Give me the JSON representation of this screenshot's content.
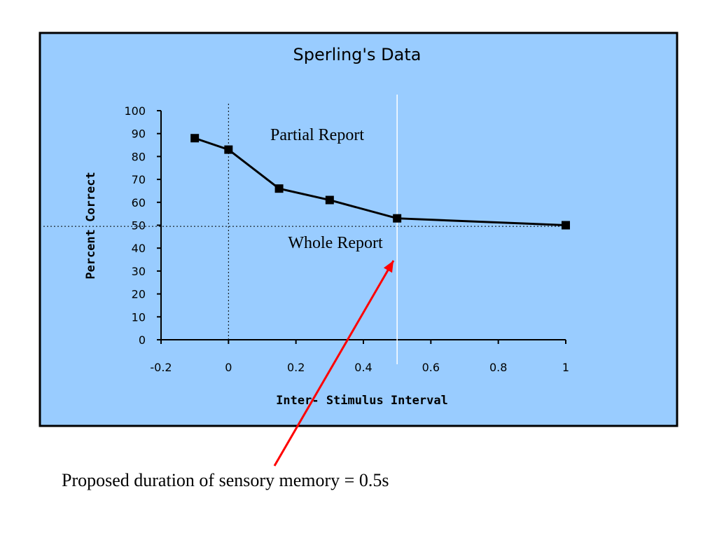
{
  "colors": {
    "panel_background": "#99ccff",
    "panel_border": "#000000",
    "series_line": "#000000",
    "cutoff_line": "#ffffff",
    "pointer_arrow": "#ff0000"
  },
  "chart_data": {
    "type": "line",
    "title": "Sperling's Data",
    "xlabel": "Inter- Stimulus Interval",
    "ylabel": "Percent Correct",
    "xlim": [
      -0.2,
      1
    ],
    "ylim": [
      0,
      100
    ],
    "x_ticks": [
      "-0.2",
      "0",
      "0.2",
      "0.4",
      "0.6",
      "0.8",
      "1"
    ],
    "y_ticks": [
      "0",
      "10",
      "20",
      "30",
      "40",
      "50",
      "60",
      "70",
      "80",
      "90",
      "100"
    ],
    "grid": false,
    "legend": "none",
    "series": [
      {
        "marker": "square",
        "x": [
          -0.1,
          0,
          0.15,
          0.3,
          0.5,
          1
        ],
        "y": [
          88,
          83,
          66,
          61,
          53,
          50
        ]
      }
    ],
    "reference_lines": {
      "vertical_dotted_x": 0,
      "horizontal_dotted_y": 49.5,
      "vertical_solid_x": 0.5
    },
    "annotations": {
      "upper_region": "Partial Report",
      "lower_region": "Whole Report"
    }
  },
  "caption": "Proposed duration of sensory memory = 0.5s"
}
